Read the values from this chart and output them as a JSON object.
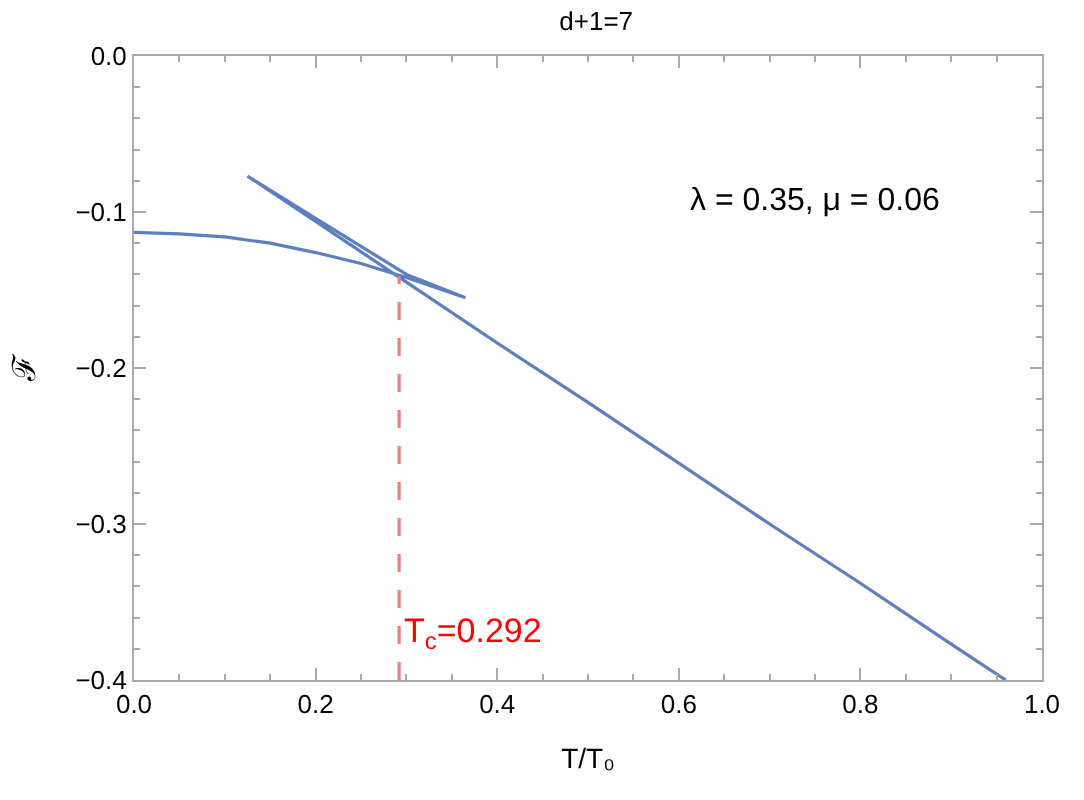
{
  "chart_data": {
    "type": "line",
    "title": "d+1=7",
    "xlabel": "T/T₀",
    "ylabel": "ℱ",
    "xlim": [
      0,
      1
    ],
    "ylim": [
      -0.4,
      0
    ],
    "xticks": [
      {
        "value": 0,
        "label": "0.0"
      },
      0.2,
      0.4,
      0.6,
      0.8,
      {
        "value": 1,
        "label": "1.0"
      }
    ],
    "yticks": [
      -0.4,
      -0.3,
      -0.2,
      -0.1,
      {
        "value": 0,
        "label": "0.0"
      }
    ],
    "legend": false,
    "series": [
      {
        "color": "#5b7fbf",
        "x": [
          0,
          0.05,
          0.1,
          0.15,
          0.2,
          0.25,
          0.3,
          0.365,
          0.3,
          0.25,
          0.2,
          0.125,
          0.2,
          0.3,
          0.4,
          0.5,
          0.6,
          0.7,
          0.8,
          0.9,
          0.96
        ],
        "values": [
          -0.113,
          -0.114,
          -0.116,
          -0.12,
          -0.126,
          -0.133,
          -0.142,
          -0.155,
          -0.14,
          -0.122,
          -0.104,
          -0.077,
          -0.106,
          -0.145,
          -0.184,
          -0.222,
          -0.261,
          -0.3,
          -0.338,
          -0.377,
          -0.4
        ]
      },
      {
        "color": "#f08080",
        "line_style": "dashed",
        "x": [
          0.292,
          0.292
        ],
        "values": [
          -0.4,
          -0.141
        ]
      }
    ],
    "annotations": [
      "λ = 0.35, μ = 0.06",
      {
        "text": "T$_{c}$=0.292",
        "x": 0.292,
        "y": -0.37
      }
    ]
  }
}
